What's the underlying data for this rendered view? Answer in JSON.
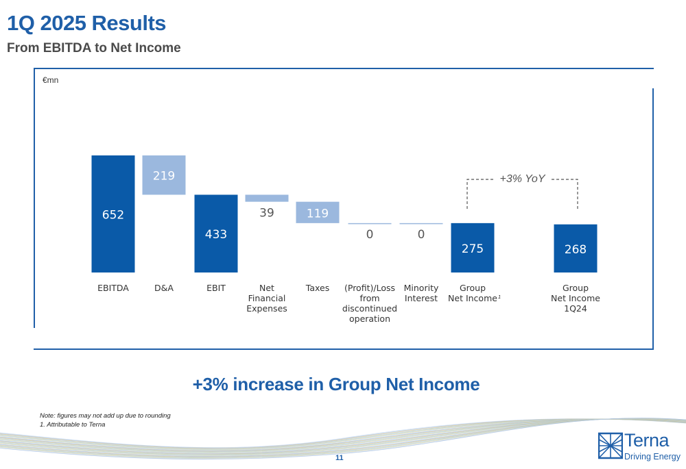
{
  "title": "1Q 2025 Results",
  "subtitle": "From EBITDA to Net Income",
  "unit": "€mn",
  "headline": "+3% increase in Group Net Income",
  "notes": [
    "Note: figures may not add up due to rounding",
    "1. Attributable to Terna"
  ],
  "page_number": "11",
  "logo": {
    "name": "Terna",
    "tagline": "Driving Energy",
    "icon": "terna-grid-icon"
  },
  "colors": {
    "dark_blue": "#0a5aa8",
    "light_blue": "#9bb8de",
    "baseline": "#9bb8de",
    "accent": "#1f5fa8"
  },
  "chart_data": {
    "type": "bar",
    "subtype": "waterfall",
    "unit": "€mn",
    "categories": [
      "EBITDA",
      "D&A",
      "EBIT",
      "Net Financial Expenses",
      "Taxes",
      "(Profit)/Loss from discontinued operation",
      "Minority Interest",
      "Group Net Income",
      "Group Net Income 1Q24"
    ],
    "label_lines": [
      [
        "EBITDA"
      ],
      [
        "D&A"
      ],
      [
        "EBIT"
      ],
      [
        "Net",
        "Financial",
        "Expenses"
      ],
      [
        "Taxes"
      ],
      [
        "(Profit)/Loss",
        "from",
        "discontinued",
        "operation"
      ],
      [
        "Minority",
        "Interest"
      ],
      [
        "Group",
        "Net Income"
      ],
      [
        "Group",
        "Net Income",
        "1Q24"
      ]
    ],
    "footnote_marker": "1",
    "values": [
      652,
      219,
      433,
      39,
      119,
      0,
      0,
      275,
      268
    ],
    "data_labels": [
      "652",
      "219",
      "433",
      "39",
      "119",
      "0",
      "0",
      "275",
      "268"
    ],
    "kinds": [
      "total",
      "decrease",
      "total",
      "decrease",
      "decrease",
      "decrease",
      "decrease",
      "total",
      "total"
    ],
    "comparison": {
      "label": "+3% YoY",
      "from": "Group Net Income",
      "to": "Group Net Income 1Q24"
    },
    "ylim": [
      0,
      652
    ]
  }
}
